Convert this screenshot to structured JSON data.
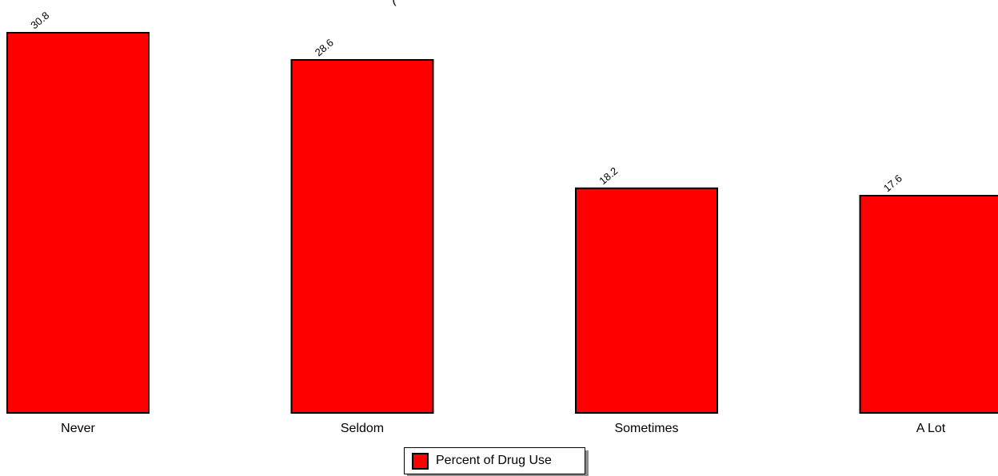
{
  "chart_data": {
    "type": "bar",
    "title": "(",
    "categories": [
      "Never",
      "Seldom",
      "Sometimes",
      "A Lot"
    ],
    "series": [
      {
        "name": "Percent of Drug Use",
        "values": [
          30.8,
          28.6,
          18.2,
          17.6
        ],
        "color": "#ff0000"
      }
    ],
    "data_labels": [
      "30.8",
      "28.6",
      "18.2",
      "17.6"
    ],
    "ylim": [
      0,
      30.8
    ],
    "grid": false,
    "legend_position": "bottom-center"
  },
  "colors": {
    "bar_fill": "#ff0000",
    "bar_stroke": "#000000",
    "legend_shadow": "#8c8c8c"
  }
}
